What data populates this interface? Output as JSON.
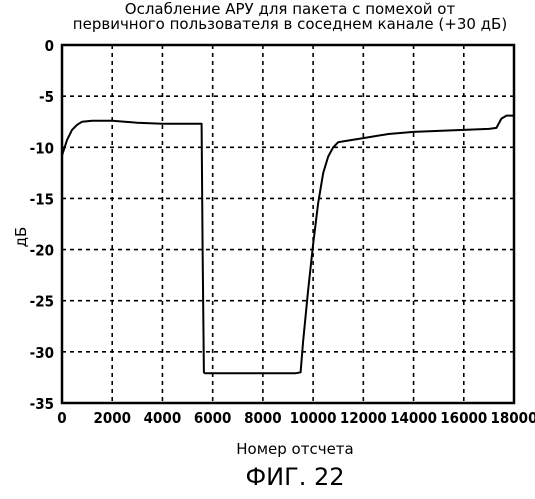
{
  "chart_data": {
    "type": "line",
    "title_lines": [
      "Ослабление АРУ для пакета с помехой от",
      "первичного пользователя в соседнем канале (+30 дБ)"
    ],
    "xlabel": "Номер отсчета",
    "ylabel": "дБ",
    "xlim": [
      0,
      18000
    ],
    "ylim": [
      -35,
      0
    ],
    "x_ticks": [
      0,
      2000,
      4000,
      6000,
      8000,
      10000,
      12000,
      14000,
      16000,
      18000
    ],
    "x_tick_labels": [
      "0",
      "2000",
      "4000",
      "6000",
      "8000",
      "10000",
      "12000",
      "14000",
      "16000",
      "18000"
    ],
    "y_ticks": [
      0,
      -5,
      -10,
      -15,
      -20,
      -25,
      -30,
      -35
    ],
    "y_tick_labels": [
      "0",
      "-5",
      "-10",
      "-15",
      "-20",
      "-25",
      "-30",
      "-35"
    ],
    "grid": true,
    "grid_style": "dashed",
    "series": [
      {
        "color": "#000000",
        "x": [
          0,
          200,
          400,
          600,
          800,
          1200,
          2000,
          3000,
          4000,
          5000,
          5500,
          5560,
          5600,
          5650,
          5700,
          6500,
          7500,
          8500,
          9300,
          9500,
          9600,
          9800,
          10000,
          10200,
          10400,
          10600,
          10800,
          11000,
          11500,
          12000,
          13000,
          14000,
          15000,
          16000,
          17000,
          17300,
          17500,
          17700,
          18000
        ],
        "y": [
          -10.8,
          -9.3,
          -8.3,
          -7.8,
          -7.5,
          -7.4,
          -7.4,
          -7.6,
          -7.7,
          -7.7,
          -7.7,
          -7.7,
          -20,
          -32,
          -32.1,
          -32.1,
          -32.1,
          -32.1,
          -32.1,
          -32.0,
          -29,
          -24,
          -19.5,
          -15.5,
          -12.5,
          -10.9,
          -10.0,
          -9.5,
          -9.3,
          -9.1,
          -8.7,
          -8.5,
          -8.4,
          -8.3,
          -8.2,
          -8.1,
          -7.2,
          -6.9,
          -6.9
        ]
      }
    ]
  },
  "caption": "ФИГ. 22"
}
